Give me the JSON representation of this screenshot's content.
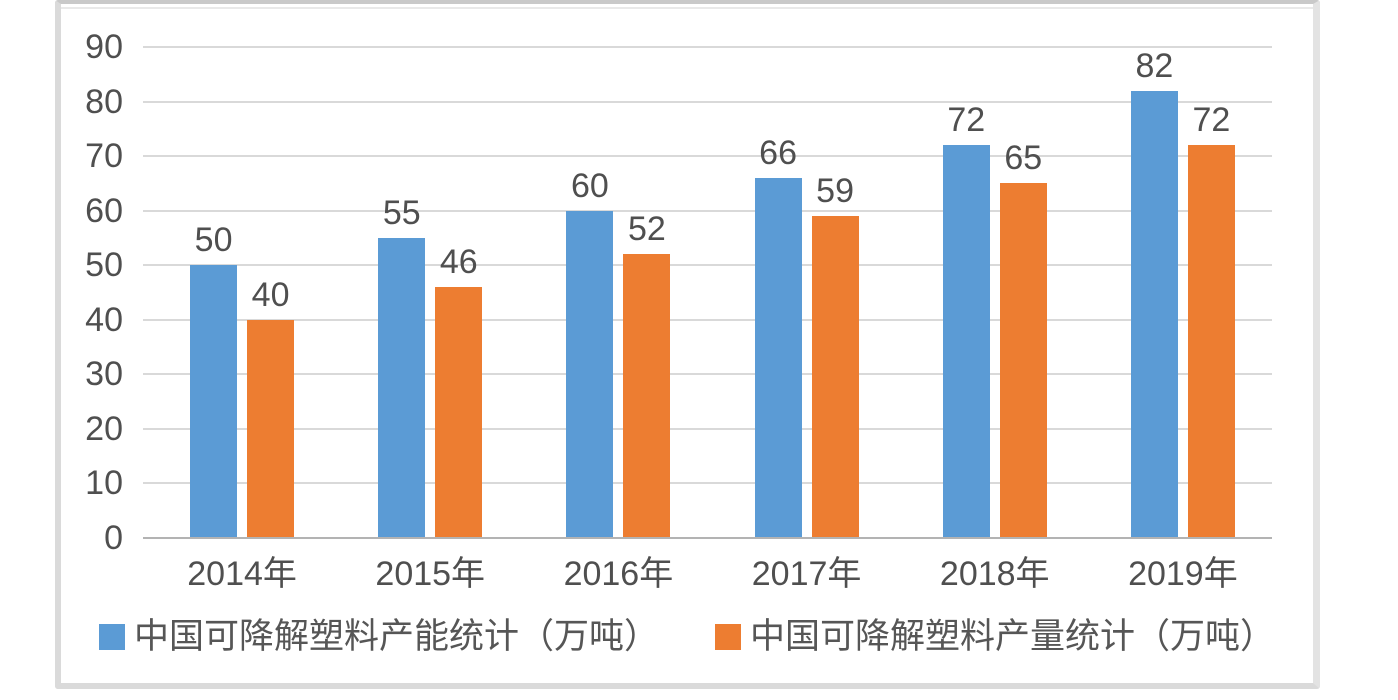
{
  "chart_data": {
    "type": "bar",
    "categories": [
      "2014年",
      "2015年",
      "2016年",
      "2017年",
      "2018年",
      "2019年"
    ],
    "series": [
      {
        "name": "中国可降解塑料产能统计（万吨）",
        "color": "#5B9BD5",
        "values": [
          50,
          55,
          60,
          66,
          72,
          82
        ]
      },
      {
        "name": "中国可降解塑料产量统计（万吨）",
        "color": "#ED7D31",
        "values": [
          40,
          46,
          52,
          59,
          65,
          72
        ]
      }
    ],
    "title": "",
    "xlabel": "",
    "ylabel": "",
    "ylim": [
      0,
      90
    ],
    "yticks": [
      0,
      10,
      20,
      30,
      40,
      50,
      60,
      70,
      80,
      90
    ],
    "grid": true,
    "data_labels": true,
    "legend_position": "bottom"
  },
  "colors": {
    "series1": "#5B9BD5",
    "series2": "#ED7D31",
    "gridline": "#d9d9d9",
    "axis_line": "#b3b3b3",
    "label_text": "#4f4f4f",
    "frame_border": "#dadada",
    "background": "#ffffff"
  }
}
